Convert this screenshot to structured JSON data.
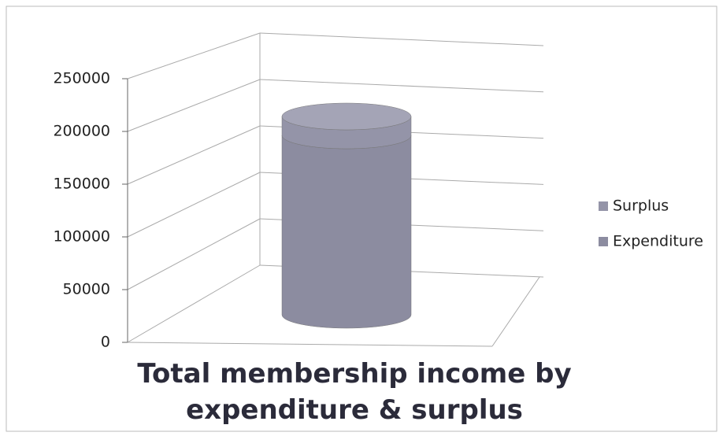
{
  "chart_data": {
    "type": "cylinder3d",
    "title": "Total membership income by expenditure & surplus",
    "categories": [
      null
    ],
    "series": [
      {
        "name": "Expenditure",
        "color": "#8c8ca0",
        "values": [
          190000
        ]
      },
      {
        "name": "Surplus",
        "color": "#9494a8",
        "values": [
          20000
        ]
      }
    ],
    "stacked": true,
    "ylim": [
      0,
      250000
    ],
    "yticks": [
      0,
      50000,
      100000,
      150000,
      200000,
      250000
    ],
    "grid": true,
    "legend": "right"
  }
}
